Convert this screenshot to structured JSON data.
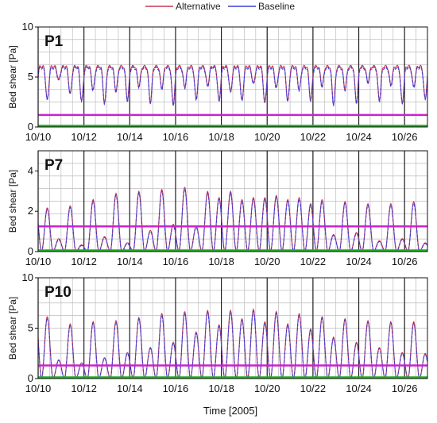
{
  "legend": {
    "alternative_label": "Alternative",
    "baseline_label": "Baseline"
  },
  "colors": {
    "alternative": "#d0324e",
    "baseline": "#3b3fd6",
    "threshold": "#cc22cc",
    "floor": "#22aa22",
    "grid": "#bdbdbd",
    "major_grid": "#202020"
  },
  "chart_data": [
    {
      "type": "line",
      "panel_label": "P1",
      "ylabel": "Bed shear [Pa]",
      "ylim": [
        0,
        10
      ],
      "yticks": [
        0,
        5,
        10
      ],
      "xlim_days": [
        10,
        27
      ],
      "xtick_labels": [
        "10/10",
        "10/12",
        "10/14",
        "10/16",
        "10/18",
        "10/20",
        "10/22",
        "10/24",
        "10/26"
      ],
      "xlabel": "",
      "threshold": 1.2,
      "series": [
        {
          "name": "Alternative",
          "color": "#d0324e"
        },
        {
          "name": "Baseline",
          "color": "#3b3fd6"
        }
      ],
      "signal": {
        "high": 5.9,
        "lows": [
          2.6,
          4.6,
          3.2,
          2.5,
          3.6,
          2.3,
          3.5,
          2.6,
          4.0,
          2.4,
          3.8,
          2.2,
          3.9,
          2.7,
          4.0,
          2.5,
          3.4,
          2.5,
          4.2,
          2.3,
          3.8,
          2.5,
          3.6,
          2.6,
          4.0,
          2.2,
          3.7,
          2.4,
          4.4,
          2.6,
          4.1,
          2.3,
          3.9,
          2.7
        ]
      }
    },
    {
      "type": "line",
      "panel_label": "P7",
      "ylabel": "Bed shear [Pa]",
      "ylim": [
        0,
        5
      ],
      "yticks": [
        0,
        2,
        4
      ],
      "xlim_days": [
        10,
        27
      ],
      "xtick_labels": [
        "10/10",
        "10/12",
        "10/14",
        "10/16",
        "10/18",
        "10/20",
        "10/22",
        "10/24",
        "10/26"
      ],
      "xlabel": "",
      "threshold": 1.25,
      "series": [
        {
          "name": "Alternative",
          "color": "#d0324e"
        },
        {
          "name": "Baseline",
          "color": "#3b3fd6"
        }
      ],
      "signal": {
        "peaks": [
          2.1,
          0.6,
          2.2,
          0.3,
          2.5,
          0.7,
          2.8,
          0.4,
          2.9,
          1.0,
          3.0,
          1.3,
          3.1,
          1.2,
          2.9,
          2.6,
          2.9,
          2.5,
          2.6,
          2.6,
          2.7,
          2.5,
          2.6,
          2.3,
          2.5,
          0.8,
          2.4,
          0.9,
          2.3,
          0.5,
          2.3,
          0.6,
          2.4,
          0.4
        ]
      }
    },
    {
      "type": "line",
      "panel_label": "P10",
      "ylabel": "Bed shear [Pa]",
      "ylim": [
        0,
        10
      ],
      "yticks": [
        0,
        5,
        10
      ],
      "xlim_days": [
        10,
        27
      ],
      "xtick_labels": [
        "10/10",
        "10/12",
        "10/14",
        "10/16",
        "10/18",
        "10/20",
        "10/22",
        "10/24",
        "10/26"
      ],
      "xlabel": "Time [2005]",
      "threshold": 1.3,
      "series": [
        {
          "name": "Alternative",
          "color": "#d0324e"
        },
        {
          "name": "Baseline",
          "color": "#3b3fd6"
        }
      ],
      "signal": {
        "peaks": [
          6.0,
          1.8,
          5.3,
          1.5,
          5.5,
          2.0,
          5.6,
          2.5,
          5.9,
          3.0,
          6.3,
          3.5,
          6.5,
          4.5,
          6.6,
          5.2,
          6.6,
          5.8,
          6.7,
          5.5,
          6.5,
          5.3,
          6.3,
          4.8,
          6.0,
          4.0,
          5.8,
          3.5,
          5.6,
          3.0,
          5.5,
          2.5,
          5.5,
          2.4
        ]
      }
    }
  ]
}
